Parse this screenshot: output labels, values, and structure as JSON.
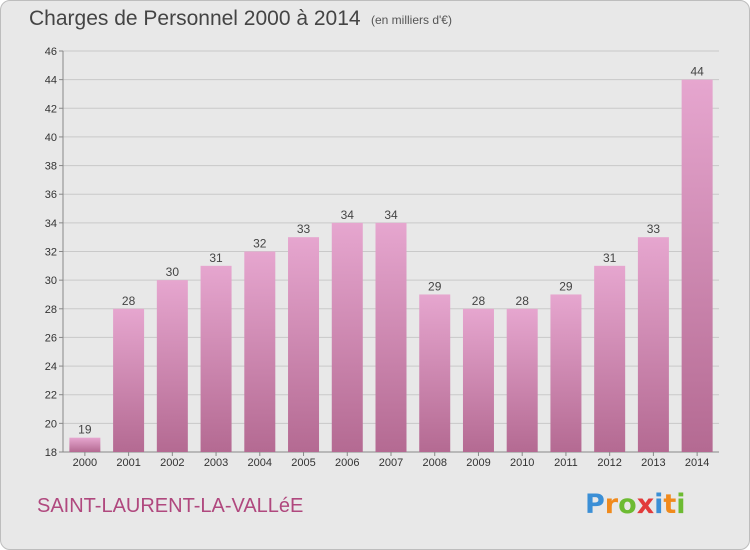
{
  "header": {
    "title": "Charges de Personnel 2000 à 2014",
    "subtitle": "(en milliers d'€)"
  },
  "commune": "SAINT-LAURENT-LA-VALLéE",
  "brand": {
    "name": "Proxiti",
    "letters": [
      "P",
      "r",
      "o",
      "x",
      "i",
      "t",
      "i"
    ],
    "letter_colors": [
      "#3b8fd6",
      "#f08a1c",
      "#6dbb32",
      "#e23b3b",
      "#3b8fd6",
      "#f08a1c",
      "#6dbb32"
    ]
  },
  "colors": {
    "bar_top": "#e6a6cf",
    "bar_bottom": "#b46a92",
    "background": "#e8e8e8",
    "grid": "#c9c9c9",
    "axis_text": "#333333"
  },
  "chart_data": {
    "type": "bar",
    "title": "Charges de Personnel 2000 à 2014",
    "subtitle": "(en milliers d'€)",
    "xlabel": "",
    "ylabel": "",
    "categories": [
      "2000",
      "2001",
      "2002",
      "2003",
      "2004",
      "2005",
      "2006",
      "2007",
      "2008",
      "2009",
      "2010",
      "2011",
      "2012",
      "2013",
      "2014"
    ],
    "values": [
      19,
      28,
      30,
      31,
      32,
      33,
      34,
      34,
      29,
      28,
      28,
      29,
      31,
      33,
      44
    ],
    "ylim": [
      18,
      46
    ],
    "yticks": [
      18,
      20,
      22,
      24,
      26,
      28,
      30,
      32,
      34,
      36,
      38,
      40,
      42,
      44,
      46
    ],
    "grid": true,
    "data_labels": true
  }
}
